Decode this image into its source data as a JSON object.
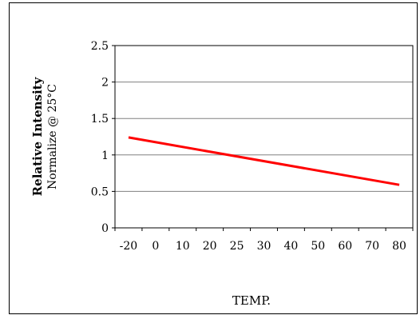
{
  "chart_data": {
    "type": "line",
    "xlabel": "TEMP.",
    "ylabel": "Relative Intensity",
    "ylabel_sub": "Normalize @ 25°C",
    "x_ticks": [
      "-20",
      "0",
      "10",
      "20",
      "25",
      "30",
      "40",
      "50",
      "60",
      "70",
      "80"
    ],
    "y_ticks": [
      "0",
      "0.5",
      "1",
      "1.5",
      "2",
      "2.5"
    ],
    "ylim": [
      0,
      2.5
    ],
    "grid": true,
    "series": [
      {
        "color": "#ff0000",
        "x": [
          "-20",
          "80"
        ],
        "y": [
          1.24,
          0.59
        ]
      }
    ]
  }
}
